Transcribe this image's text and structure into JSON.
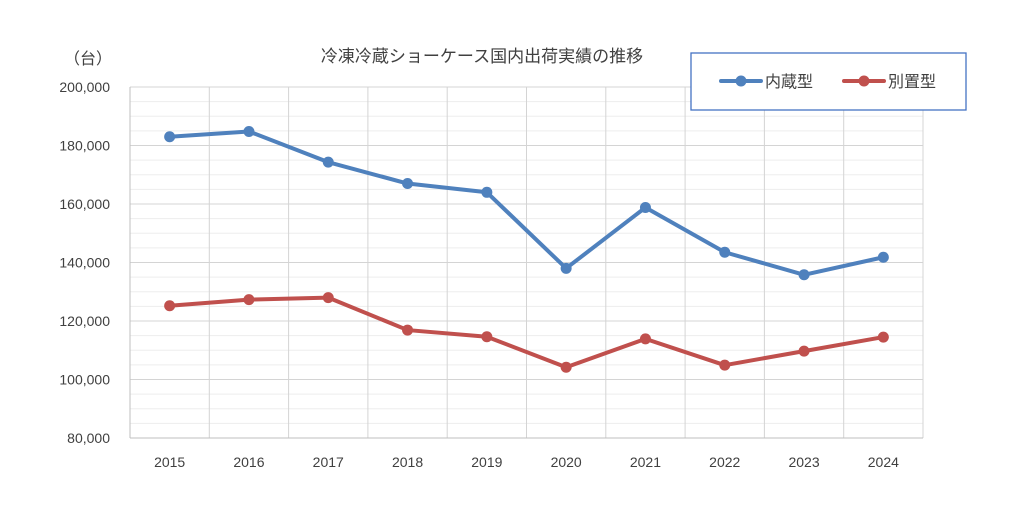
{
  "chart_data": {
    "type": "line",
    "title": "冷凍冷蔵ショーケース国内出荷実績の推移",
    "unit_label": "（台）",
    "categories": [
      "2015",
      "2016",
      "2017",
      "2018",
      "2019",
      "2020",
      "2021",
      "2022",
      "2023",
      "2024"
    ],
    "ylim": [
      80000,
      200000
    ],
    "yticks": [
      "80,000",
      "100,000",
      "120,000",
      "140,000",
      "160,000",
      "180,000",
      "200,000"
    ],
    "grid": true,
    "legend_position": "top-right",
    "series": [
      {
        "name": "内蔵型",
        "color": "#4F81BD",
        "values": [
          183000,
          184800,
          174300,
          167000,
          164000,
          138000,
          158800,
          143500,
          135800,
          141800
        ]
      },
      {
        "name": "別置型",
        "color": "#C0504D",
        "values": [
          125200,
          127300,
          128000,
          116900,
          114600,
          104200,
          113900,
          104900,
          109700,
          114500
        ]
      }
    ]
  }
}
